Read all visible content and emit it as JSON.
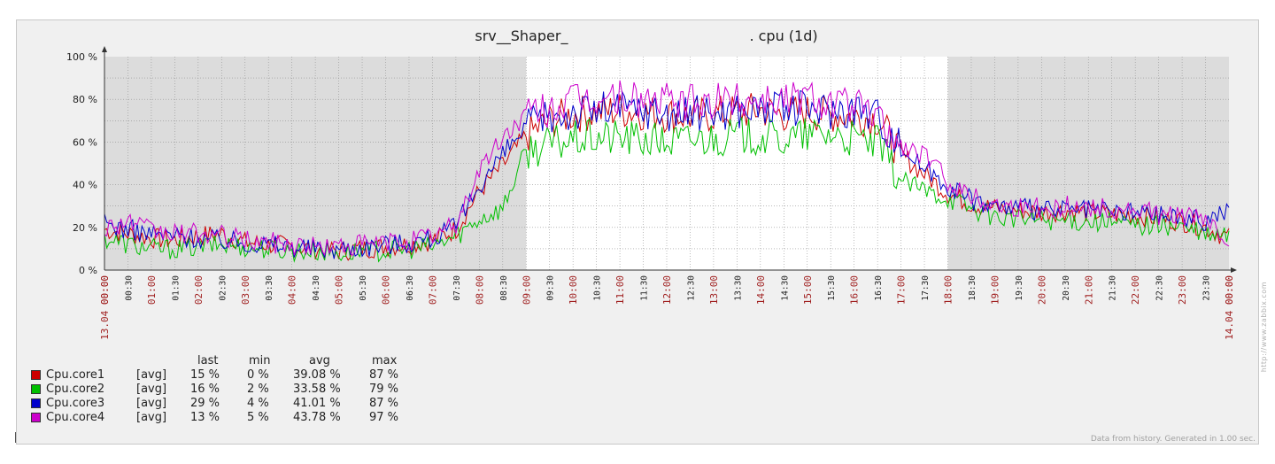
{
  "chart_data": {
    "type": "line",
    "title": "srv__Shaper_",
    "title_suffix": ". cpu (1d)",
    "x_start_label": "13.04 00:00",
    "x_end_label": "14.04 00:00",
    "x_tick_labels": [
      "00:00",
      "00:30",
      "01:00",
      "01:30",
      "02:00",
      "02:30",
      "03:00",
      "03:30",
      "04:00",
      "04:30",
      "05:00",
      "05:30",
      "06:00",
      "06:30",
      "07:00",
      "07:30",
      "08:00",
      "08:30",
      "09:00",
      "09:30",
      "10:00",
      "10:30",
      "11:00",
      "11:30",
      "12:00",
      "12:30",
      "13:00",
      "13:30",
      "14:00",
      "14:30",
      "15:00",
      "15:30",
      "16:00",
      "16:30",
      "17:00",
      "17:30",
      "18:00",
      "18:30",
      "19:00",
      "19:30",
      "20:00",
      "20:30",
      "21:00",
      "21:30",
      "22:00",
      "22:30",
      "23:00",
      "23:30",
      "00:00"
    ],
    "x_range_hours": [
      0,
      24
    ],
    "highlight_hours": [
      9,
      18
    ],
    "y_tick_labels": [
      "0 %",
      "20 %",
      "40 %",
      "60 %",
      "80 %",
      "100 %"
    ],
    "ylim": [
      0,
      100
    ],
    "grid": true,
    "series": [
      {
        "name": "Cpu.core1",
        "color": "#cc0000",
        "func": "[avg]",
        "last": "15 %",
        "min": "0 %",
        "avg": "39.08 %",
        "max": "87 %",
        "x": [
          0,
          0.5,
          1,
          1.5,
          2,
          2.5,
          3,
          3.5,
          4,
          4.5,
          5,
          5.5,
          6,
          6.5,
          7,
          7.5,
          8,
          8.5,
          9,
          9.5,
          10,
          10.5,
          11,
          11.5,
          12,
          12.5,
          13,
          13.5,
          14,
          14.5,
          15,
          15.5,
          16,
          16.5,
          17,
          17.5,
          18,
          18.5,
          19,
          19.5,
          20,
          20.5,
          21,
          21.5,
          22,
          22.5,
          23,
          23.5,
          24
        ],
        "values": [
          19,
          17,
          15,
          14,
          16,
          17,
          13,
          12,
          11,
          10,
          9,
          10,
          11,
          12,
          14,
          19,
          37,
          49,
          63,
          70,
          73,
          74,
          75,
          74,
          73,
          72,
          73,
          74,
          75,
          73,
          74,
          73,
          72,
          71,
          54,
          45,
          36,
          31,
          29,
          28,
          27,
          28,
          27,
          26,
          26,
          24,
          23,
          20,
          15
        ]
      },
      {
        "name": "Cpu.core2",
        "color": "#00c000",
        "func": "[avg]",
        "last": "16 %",
        "min": "2 %",
        "avg": "33.58 %",
        "max": "79 %",
        "x": [
          0,
          0.5,
          1,
          1.5,
          2,
          2.5,
          3,
          3.5,
          4,
          4.5,
          5,
          5.5,
          6,
          6.5,
          7,
          7.5,
          8,
          8.5,
          9,
          9.5,
          10,
          10.5,
          11,
          11.5,
          12,
          12.5,
          13,
          13.5,
          14,
          14.5,
          15,
          15.5,
          16,
          16.5,
          17,
          17.5,
          18,
          18.5,
          19,
          19.5,
          20,
          20.5,
          21,
          21.5,
          22,
          22.5,
          23,
          23.5,
          24
        ],
        "values": [
          15,
          12,
          10,
          10,
          11,
          12,
          11,
          10,
          9,
          9,
          8,
          9,
          9,
          10,
          11,
          16,
          24,
          29,
          56,
          59,
          61,
          62,
          62,
          61,
          60,
          61,
          62,
          63,
          62,
          61,
          63,
          64,
          61,
          59,
          42,
          37,
          34,
          29,
          25,
          24,
          24,
          23,
          23,
          22,
          21,
          21,
          20,
          16,
          16
        ]
      },
      {
        "name": "Cpu.core3",
        "color": "#0000cc",
        "func": "[avg]",
        "last": "29 %",
        "min": "4 %",
        "avg": "41.01 %",
        "max": "87 %",
        "x": [
          0,
          0.5,
          1,
          1.5,
          2,
          2.5,
          3,
          3.5,
          4,
          4.5,
          5,
          5.5,
          6,
          6.5,
          7,
          7.5,
          8,
          8.5,
          9,
          9.5,
          10,
          10.5,
          11,
          11.5,
          12,
          12.5,
          13,
          13.5,
          14,
          14.5,
          15,
          15.5,
          16,
          16.5,
          17,
          17.5,
          18,
          18.5,
          19,
          19.5,
          20,
          20.5,
          21,
          21.5,
          22,
          22.5,
          23,
          23.5,
          24
        ],
        "values": [
          22,
          19,
          17,
          16,
          15,
          14,
          13,
          12,
          11,
          10,
          10,
          11,
          12,
          13,
          15,
          20,
          40,
          54,
          67,
          72,
          74,
          75,
          76,
          75,
          74,
          73,
          74,
          75,
          76,
          75,
          76,
          75,
          76,
          73,
          57,
          48,
          40,
          33,
          30,
          29,
          28,
          28,
          28,
          27,
          27,
          26,
          25,
          23,
          29
        ]
      },
      {
        "name": "Cpu.core4",
        "color": "#cc00cc",
        "func": "[avg]",
        "last": "13 %",
        "min": "5 %",
        "avg": "43.78 %",
        "max": "97 %",
        "x": [
          0,
          0.5,
          1,
          1.5,
          2,
          2.5,
          3,
          3.5,
          4,
          4.5,
          5,
          5.5,
          6,
          6.5,
          7,
          7.5,
          8,
          8.5,
          9,
          9.5,
          10,
          10.5,
          11,
          11.5,
          12,
          12.5,
          13,
          13.5,
          14,
          14.5,
          15,
          15.5,
          16,
          16.5,
          17,
          17.5,
          18,
          18.5,
          19,
          19.5,
          20,
          20.5,
          21,
          21.5,
          22,
          22.5,
          23,
          23.5,
          24
        ],
        "values": [
          20,
          23,
          18,
          17,
          17,
          16,
          14,
          13,
          12,
          11,
          11,
          12,
          13,
          14,
          16,
          21,
          47,
          62,
          73,
          76,
          79,
          80,
          81,
          80,
          79,
          78,
          79,
          80,
          81,
          80,
          82,
          79,
          77,
          71,
          58,
          54,
          42,
          35,
          31,
          30,
          29,
          30,
          30,
          28,
          28,
          26,
          26,
          23,
          13
        ]
      }
    ],
    "legend_headers": {
      "last": "last",
      "min": "min",
      "avg": "avg",
      "max": "max"
    },
    "colors": {
      "plot_bg": "#dcdcdc",
      "plot_bg_highlight": "#ffffff",
      "grid": "#909090",
      "tick_label_red": "#a02020",
      "tick_label_dark": "#222222",
      "frame_bg": "#f0f0f0"
    }
  },
  "footer": "Data from history. Generated in 1.00 sec.",
  "watermark": "http://www.zabbix.com"
}
